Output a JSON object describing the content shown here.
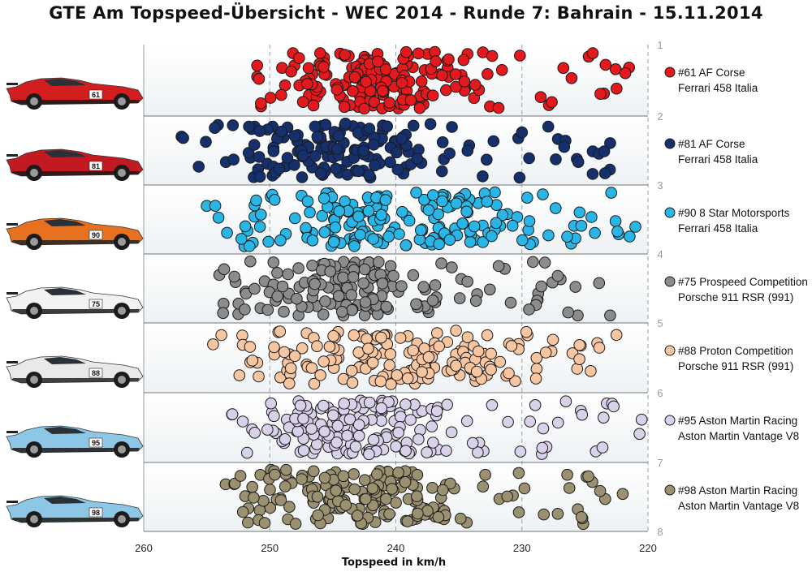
{
  "title": "GTE Am Topspeed-Übersicht - WEC 2014 - Runde 7: Bahrain - 15.11.2014",
  "chart_data": {
    "type": "scatter",
    "title": "GTE Am Topspeed-Übersicht - WEC 2014 - Runde 7: Bahrain - 15.11.2014",
    "xlabel": "Topspeed in km/h",
    "ylabel": "",
    "xlim": [
      260,
      220
    ],
    "x_reversed": true,
    "x_ticks": [
      260,
      250,
      240,
      230,
      220
    ],
    "lane_ticks": [
      "1",
      "2",
      "3",
      "4",
      "5",
      "6",
      "7",
      "8"
    ],
    "grid": "vertical dashed at x ticks, horizontal lines at lane borders",
    "legend_placement": "right",
    "series": [
      {
        "name": "#61 AF Corse",
        "subname": "Ferrari 458 Italia",
        "color": "#e3191d",
        "lane": 1,
        "min": 221.5,
        "max": 251,
        "center": 241.5,
        "spread": 4.5,
        "count": 190,
        "seed": 11
      },
      {
        "name": "#81 AF Corse",
        "subname": "Ferrari 458 Italia",
        "color": "#15306d",
        "lane": 2,
        "min": 223,
        "max": 257,
        "center": 244.5,
        "spread": 5,
        "count": 170,
        "seed": 23
      },
      {
        "name": "#90 8 Star Motorsports",
        "subname": "Ferrari 458 Italia",
        "color": "#29b6e6",
        "lane": 3,
        "min": 221,
        "max": 255,
        "center": 240,
        "spread": 7,
        "count": 190,
        "seed": 37
      },
      {
        "name": "#75 Prospeed Competition",
        "subname": "Porsche 911 RSR (991)",
        "color": "#8c8c8c",
        "lane": 4,
        "min": 223,
        "max": 254,
        "center": 244,
        "spread": 4.5,
        "count": 160,
        "seed": 41
      },
      {
        "name": "#88 Proton Competition",
        "subname": "Porsche 911 RSR (991)",
        "color": "#f7c6a1",
        "lane": 5,
        "min": 222.5,
        "max": 254.5,
        "center": 240,
        "spread": 6.5,
        "count": 170,
        "seed": 53
      },
      {
        "name": "#95 Aston Martin Racing",
        "subname": "Aston Martin Vantage V8",
        "color": "#d9d0ea",
        "lane": 6,
        "min": 220.5,
        "max": 253,
        "center": 243,
        "spread": 5,
        "count": 170,
        "seed": 67
      },
      {
        "name": "#98 Aston Martin Racing",
        "subname": "Aston Martin Vantage V8",
        "color": "#9b9170",
        "lane": 7,
        "min": 222,
        "max": 253.5,
        "center": 243,
        "spread": 5.5,
        "count": 190,
        "seed": 79
      }
    ]
  },
  "cars": [
    {
      "body": "#d21e1e",
      "accent": "#1a1a1a",
      "number": "61"
    },
    {
      "body": "#c21a22",
      "accent": "#1a1a1a",
      "number": "81"
    },
    {
      "body": "#e8711f",
      "accent": "#222222",
      "number": "90"
    },
    {
      "body": "#f2f2f2",
      "accent": "#1b1b1b",
      "number": "75"
    },
    {
      "body": "#e9e9e9",
      "accent": "#222222",
      "number": "88"
    },
    {
      "body": "#8cc8e6",
      "accent": "#1a1a1a",
      "number": "95"
    },
    {
      "body": "#8cc8e6",
      "accent": "#1a1a1a",
      "number": "98"
    }
  ]
}
